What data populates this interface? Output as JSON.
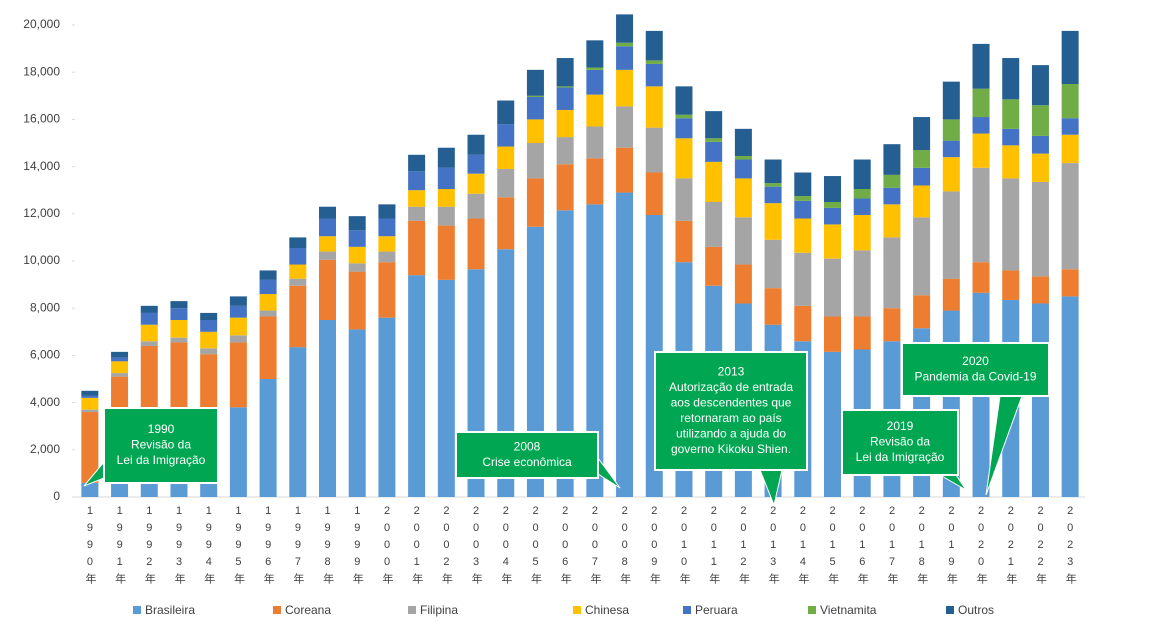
{
  "chart_data": {
    "type": "stacked_bar",
    "categories": [
      "1990年",
      "1991年",
      "1992年",
      "1993年",
      "1994年",
      "1995年",
      "1996年",
      "1997年",
      "1998年",
      "1999年",
      "2000年",
      "2001年",
      "2002年",
      "2003年",
      "2004年",
      "2005年",
      "2006年",
      "2007年",
      "2008年",
      "2009年",
      "2010年",
      "2011年",
      "2012年",
      "2013年",
      "2014年",
      "2015年",
      "2016年",
      "2017年",
      "2018年",
      "2019年",
      "2020年",
      "2021年",
      "2022年",
      "2023年"
    ],
    "series": [
      {
        "name": "Brasileira",
        "color": "#5b9bd5",
        "values": [
          600,
          1000,
          1700,
          2000,
          2500,
          3800,
          5000,
          6350,
          7500,
          7100,
          7600,
          9400,
          9200,
          9650,
          10500,
          11450,
          12150,
          12400,
          12900,
          11950,
          9950,
          8950,
          8200,
          7300,
          6600,
          6150,
          6250,
          6600,
          7150,
          7900,
          8650,
          8350,
          8200,
          8500
        ]
      },
      {
        "name": "Coreana",
        "color": "#ed7d31",
        "values": [
          3000,
          4100,
          4700,
          4550,
          3550,
          2750,
          2650,
          2600,
          2550,
          2450,
          2350,
          2300,
          2300,
          2150,
          2200,
          2050,
          1950,
          1950,
          1900,
          1800,
          1750,
          1650,
          1650,
          1550,
          1500,
          1500,
          1400,
          1400,
          1400,
          1350,
          1300,
          1250,
          1150,
          1150
        ]
      },
      {
        "name": "Filipina",
        "color": "#a5a5a5",
        "values": [
          100,
          150,
          200,
          200,
          250,
          300,
          250,
          300,
          350,
          350,
          450,
          600,
          800,
          1050,
          1200,
          1500,
          1150,
          1350,
          1750,
          1900,
          1800,
          1900,
          2000,
          2050,
          2250,
          2450,
          2800,
          3000,
          3300,
          3700,
          4000,
          3900,
          4000,
          4500
        ]
      },
      {
        "name": "Chinesa",
        "color": "#ffc000",
        "values": [
          500,
          500,
          700,
          750,
          700,
          750,
          700,
          600,
          650,
          700,
          650,
          700,
          750,
          850,
          950,
          1000,
          1150,
          1350,
          1550,
          1750,
          1700,
          1700,
          1650,
          1550,
          1450,
          1450,
          1500,
          1400,
          1350,
          1450,
          1450,
          1400,
          1200,
          1200
        ]
      },
      {
        "name": "Peruara",
        "color": "#4472c4",
        "values": [
          100,
          150,
          500,
          500,
          500,
          500,
          600,
          700,
          750,
          700,
          750,
          800,
          900,
          800,
          950,
          950,
          950,
          1050,
          1000,
          950,
          850,
          850,
          800,
          700,
          750,
          700,
          700,
          700,
          750,
          700,
          700,
          700,
          750,
          700
        ]
      },
      {
        "name": "Vietnamita",
        "color": "#70ad47",
        "values": [
          0,
          0,
          0,
          0,
          0,
          0,
          0,
          0,
          0,
          0,
          0,
          0,
          0,
          0,
          0,
          50,
          50,
          100,
          150,
          150,
          150,
          150,
          150,
          150,
          200,
          250,
          400,
          550,
          750,
          900,
          1200,
          1250,
          1300,
          1450
        ]
      },
      {
        "name": "Outros",
        "color": "#255e91",
        "values": [
          200,
          250,
          300,
          300,
          300,
          400,
          400,
          450,
          500,
          600,
          600,
          700,
          850,
          850,
          1000,
          1100,
          1200,
          1150,
          1200,
          1250,
          1200,
          1150,
          1150,
          1000,
          1000,
          1100,
          1250,
          1300,
          1400,
          1600,
          1900,
          1750,
          1700,
          2250
        ]
      }
    ],
    "ylim": [
      0,
      21000
    ],
    "yticks": [
      0,
      {
        "value": 2000,
        "label": "2,000"
      },
      {
        "value": 4000,
        "label": "4,000"
      },
      {
        "value": 6000,
        "label": "6,000"
      },
      {
        "value": 8000,
        "label": "8,000"
      },
      {
        "value": 10000,
        "label": "10,000"
      },
      {
        "value": 12000,
        "label": "12,000"
      },
      {
        "value": 14000,
        "label": "14,000"
      },
      {
        "value": 16000,
        "label": "16,000"
      },
      {
        "value": 18000,
        "label": "18,000"
      },
      {
        "value": 20000,
        "label": "20,000"
      }
    ],
    "grid": false,
    "legend": "bottom",
    "annotations": [
      {
        "lines": [
          "1990",
          "Revisão da",
          "Lei da Imigração"
        ]
      },
      {
        "lines": [
          "2008",
          "Crise econômica"
        ]
      },
      {
        "lines": [
          "2013",
          "Autorização de entrada",
          "aos descendentes que",
          "retornaram ao país",
          "utilizando a ajuda do",
          "governo Kikoku Shien."
        ]
      },
      {
        "lines": [
          "2019",
          "Revisão da",
          "Lei da Imigração"
        ]
      },
      {
        "lines": [
          "2020",
          "Pandemia da Covid-19"
        ]
      }
    ]
  }
}
